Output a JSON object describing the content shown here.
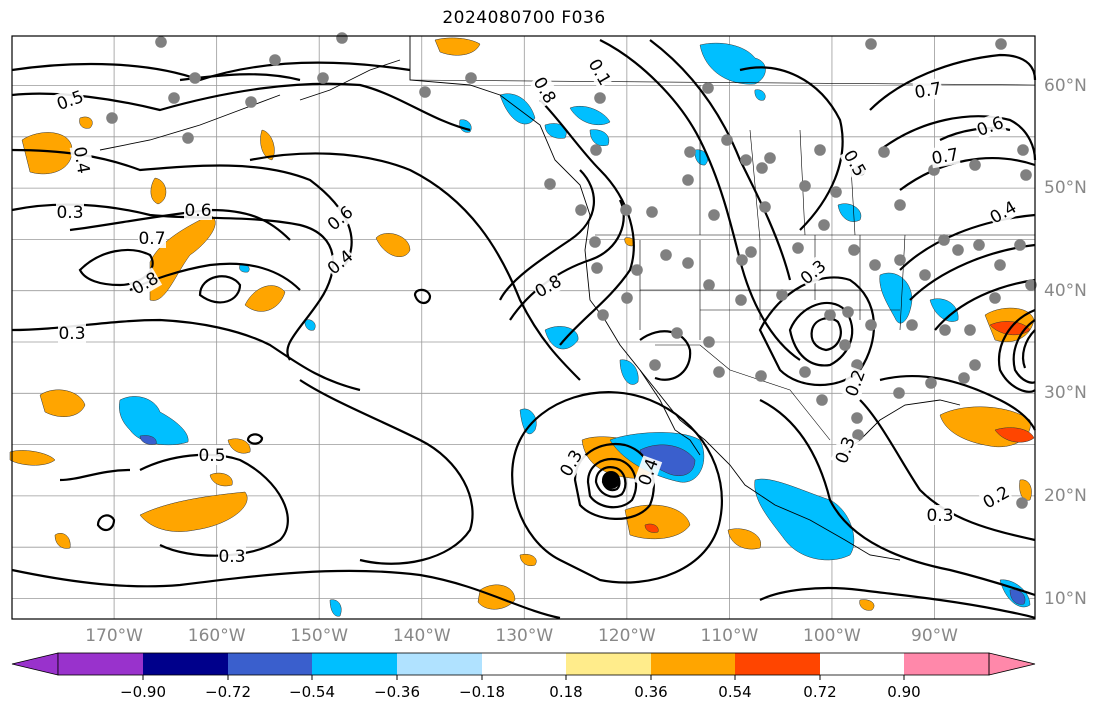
{
  "title": "2024080700 F036",
  "map": {
    "lon_labels": [
      {
        "lon": -170,
        "text": "170°W"
      },
      {
        "lon": -160,
        "text": "160°W"
      },
      {
        "lon": -150,
        "text": "150°W"
      },
      {
        "lon": -140,
        "text": "140°W"
      },
      {
        "lon": -130,
        "text": "130°W"
      },
      {
        "lon": -120,
        "text": "120°W"
      },
      {
        "lon": -110,
        "text": "110°W"
      },
      {
        "lon": -100,
        "text": "100°W"
      },
      {
        "lon": -90,
        "text": "90°W"
      }
    ],
    "lat_labels": [
      {
        "lat": 60,
        "text": "60°N"
      },
      {
        "lat": 50,
        "text": "50°N"
      },
      {
        "lat": 40,
        "text": "40°N"
      },
      {
        "lat": 30,
        "text": "30°N"
      },
      {
        "lat": 20,
        "text": "20°N"
      },
      {
        "lat": 10,
        "text": "10°N"
      }
    ],
    "contour_labels": [
      "0.5",
      "0.4",
      "0.3",
      "0.6",
      "0.7",
      "0.8",
      "0.3",
      "0.5",
      "0.3",
      "0.3",
      "0.6",
      "0.4",
      "0.8",
      "0.1",
      "0.8",
      "0.7",
      "0.6",
      "0.5",
      "0.7",
      "0.4",
      "0.3",
      "0.2",
      "0.3",
      "0.2",
      "0.3",
      "0.4"
    ],
    "storm_marker": "tropical-cyclone-center"
  },
  "colorbar": {
    "colors": [
      "#9932cc",
      "#00008b",
      "#3a5fcd",
      "#00bfff",
      "#b0e2ff",
      "#ffffff",
      "#ffec8b",
      "#ffa500",
      "#ff4500",
      "#b22222",
      "#ff88aa"
    ],
    "ticks": [
      "−0.90",
      "−0.72",
      "−0.54",
      "−0.36",
      "−0.18",
      "0.18",
      "0.36",
      "0.54",
      "0.72",
      "0.90"
    ]
  }
}
